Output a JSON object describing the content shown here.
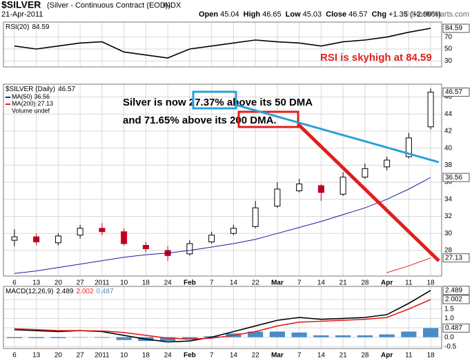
{
  "header": {
    "symbol": "$SILVER",
    "description": "(Silver - Continuous Contract (EOD))",
    "exchange": "INDX",
    "date": "21-Apr-2011",
    "quote": [
      {
        "label": "Open",
        "value": "45.04"
      },
      {
        "label": "High",
        "value": "46.65"
      },
      {
        "label": "Low",
        "value": "45.03"
      },
      {
        "label": "Close",
        "value": "46.57"
      },
      {
        "label": "Chg",
        "value": "+1.35 (+2.99%)"
      }
    ],
    "copyright": "© StockCharts.com"
  },
  "chart_data": [
    {
      "type": "line",
      "title": "RSI(20)",
      "categories": [
        "6",
        "13",
        "20",
        "27",
        "2011",
        "10",
        "18",
        "24",
        "Feb",
        "7",
        "14",
        "22",
        "Mar",
        "7",
        "14",
        "21",
        "28",
        "Apr",
        "11",
        "18"
      ],
      "series": [
        {
          "name": "RSI(20)",
          "color": "#000000",
          "values": [
            55,
            50,
            55,
            60,
            62,
            45,
            40,
            35,
            50,
            55,
            60,
            65,
            62,
            60,
            55,
            62,
            65,
            70,
            78,
            84.59
          ]
        }
      ],
      "ylim": [
        20,
        95
      ],
      "yticks": [
        30,
        50,
        70
      ],
      "grid": true,
      "annotation": "RSI is skyhigh at 84.59"
    },
    {
      "type": "candlestick",
      "title": "$SILVER (Daily)",
      "categories": [
        "6",
        "13",
        "20",
        "27",
        "2011",
        "10",
        "18",
        "24",
        "Feb",
        "7",
        "14",
        "22",
        "Mar",
        "7",
        "14",
        "21",
        "28",
        "Apr",
        "11",
        "18"
      ],
      "open": [
        29.2,
        29.6,
        28.9,
        29.8,
        30.6,
        30.2,
        28.6,
        28.0,
        27.6,
        29.0,
        30.0,
        30.8,
        33.2,
        35.0,
        35.6,
        34.6,
        36.6,
        37.8,
        39.0,
        42.5
      ],
      "high": [
        30.5,
        30.0,
        30.0,
        31.0,
        31.2,
        30.6,
        29.0,
        28.5,
        29.2,
        30.2,
        31.0,
        33.8,
        36.0,
        36.4,
        35.8,
        37.2,
        38.2,
        39.0,
        41.8,
        47.0
      ],
      "low": [
        28.5,
        28.6,
        28.6,
        29.4,
        29.8,
        28.6,
        27.8,
        26.8,
        27.4,
        28.8,
        29.8,
        30.6,
        33.0,
        34.8,
        33.8,
        34.4,
        36.4,
        37.4,
        38.8,
        42.2
      ],
      "close": [
        29.6,
        29.0,
        29.7,
        30.6,
        30.2,
        28.8,
        28.2,
        27.4,
        28.8,
        29.8,
        30.6,
        33.0,
        35.2,
        35.8,
        34.8,
        36.6,
        37.6,
        38.6,
        41.2,
        46.57
      ],
      "series": [
        {
          "name": "MA(50)",
          "color": "#1a1aa0",
          "values": [
            25.3,
            25.6,
            26,
            26.4,
            26.8,
            27.2,
            27.5,
            27.7,
            28,
            28.4,
            28.8,
            29.3,
            30,
            30.7,
            31.4,
            32.2,
            33,
            34,
            35.2,
            36.56
          ]
        },
        {
          "name": "MA(200)",
          "color": "#e0201e",
          "values": [
            null,
            null,
            null,
            null,
            null,
            null,
            null,
            null,
            null,
            null,
            null,
            null,
            null,
            null,
            null,
            null,
            null,
            25.4,
            26.2,
            27.13
          ]
        }
      ],
      "volume_label": "Volume undef",
      "ylim": [
        25,
        47.5
      ],
      "yticks": [
        28,
        30,
        32,
        34,
        36,
        38,
        40,
        42,
        44,
        46
      ],
      "grid": true,
      "annotation": [
        "Silver is now ",
        "27.37%",
        " above its 50 DMA",
        "and 71.65% above its ",
        "200 DMA."
      ]
    },
    {
      "type": "line",
      "title": "MACD(12,26,9)",
      "categories": [
        "6",
        "13",
        "20",
        "27",
        "2011",
        "10",
        "18",
        "24",
        "Feb",
        "7",
        "14",
        "22",
        "Mar",
        "7",
        "14",
        "21",
        "28",
        "Apr",
        "11",
        "18"
      ],
      "series": [
        {
          "name": "MACD",
          "color": "#000000",
          "values": [
            0.4,
            0.35,
            0.3,
            0.35,
            0.3,
            0.1,
            -0.1,
            -0.25,
            -0.2,
            0,
            0.3,
            0.6,
            0.9,
            1.05,
            0.95,
            1.0,
            1.05,
            1.2,
            1.8,
            2.489
          ]
        },
        {
          "name": "Signal",
          "color": "#e0201e",
          "values": [
            0.45,
            0.4,
            0.35,
            0.35,
            0.33,
            0.25,
            0.1,
            -0.05,
            -0.1,
            -0.05,
            0.1,
            0.3,
            0.6,
            0.8,
            0.85,
            0.9,
            0.95,
            1.05,
            1.5,
            2.002
          ]
        },
        {
          "name": "Histogram",
          "color": "#4a8cc8",
          "kind": "bar",
          "values": [
            -0.05,
            -0.05,
            -0.05,
            0,
            -0.03,
            -0.15,
            -0.2,
            -0.2,
            -0.1,
            0.05,
            0.2,
            0.3,
            0.3,
            0.25,
            0.1,
            0.1,
            0.1,
            0.15,
            0.3,
            0.487
          ]
        }
      ],
      "ylim": [
        -0.6,
        2.7
      ],
      "yticks": [
        -0.5,
        {
          "value": 0,
          "label": "0.0"
        },
        0.5,
        {
          "value": 1,
          "label": "1.0"
        },
        1.5,
        {
          "value": 2,
          "label": "2.0"
        }
      ],
      "grid": true
    }
  ]
}
